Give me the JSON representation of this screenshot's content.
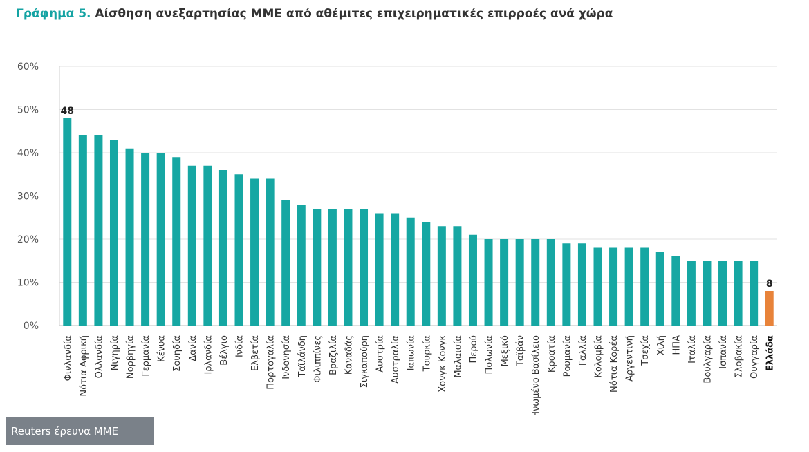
{
  "title": {
    "prefix": "Γράφημα 5.",
    "text": "Αίσθηση ανεξαρτησίας ΜΜΕ από αθέμιτες επιχειρηματικές επιρροές ανά χώρα"
  },
  "source_badge": "Reuters έρευνα ΜΜΕ",
  "colors": {
    "bar": "#16a7a3",
    "highlight": "#e8833a",
    "title_accent": "#14a3a3",
    "text": "#333333",
    "grid": "#e2e2e2"
  },
  "chart_data": {
    "type": "bar",
    "title": "Αίσθηση ανεξαρτησίας ΜΜΕ από αθέμιτες επιχειρηματικές επιρροές ανά χώρα",
    "xlabel": "",
    "ylabel": "",
    "ylim": [
      0,
      60
    ],
    "yticks": [
      0,
      10,
      20,
      30,
      40,
      50,
      60
    ],
    "ytick_labels": [
      "0%",
      "10%",
      "20%",
      "30%",
      "40%",
      "50%",
      "60%"
    ],
    "grid": true,
    "categories": [
      "Φινλανδία",
      "Νότια Αφρική",
      "Ολλανδία",
      "Νιγηρία",
      "Νορβηγία",
      "Γερμανία",
      "Κένυα",
      "Σουηδία",
      "Δανία",
      "Ιρλανδία",
      "Βέλγιο",
      "Ινδία",
      "Ελβετία",
      "Πορτογαλία",
      "Ινδονησία",
      "Ταϊλάνδη",
      "Φιλιππίνες",
      "Βραζιλία",
      "Καναδάς",
      "Σιγκαπούρη",
      "Αυστρία",
      "Αυστραλία",
      "Ιαπωνία",
      "Τουρκία",
      "Χονγκ Κονγκ",
      "Μαλαισία",
      "Περού",
      "Πολωνία",
      "Μεξικό",
      "Ταϊβάν",
      "Ηνωμένο Βασίλειο",
      "Κροατία",
      "Ρουμανία",
      "Γαλλία",
      "Κολομβία",
      "Νότια Κορέα",
      "Αργεντινή",
      "Τσεχία",
      "Χιλή",
      "ΗΠΑ",
      "Ιταλία",
      "Βουλγαρία",
      "Ισπανία",
      "Σλοβακία",
      "Ουγγαρία",
      "Ελλάδα"
    ],
    "values": [
      48,
      44,
      44,
      43,
      41,
      40,
      40,
      39,
      37,
      37,
      36,
      35,
      34,
      34,
      29,
      28,
      27,
      27,
      27,
      27,
      26,
      26,
      25,
      24,
      23,
      23,
      21,
      20,
      20,
      20,
      20,
      20,
      19,
      19,
      18,
      18,
      18,
      18,
      17,
      16,
      15,
      15,
      15,
      15,
      15,
      8
    ],
    "highlight_category": "Ελλάδα",
    "data_labels": [
      {
        "category": "Φινλανδία",
        "text": "48"
      },
      {
        "category": "Ελλάδα",
        "text": "8"
      }
    ]
  }
}
